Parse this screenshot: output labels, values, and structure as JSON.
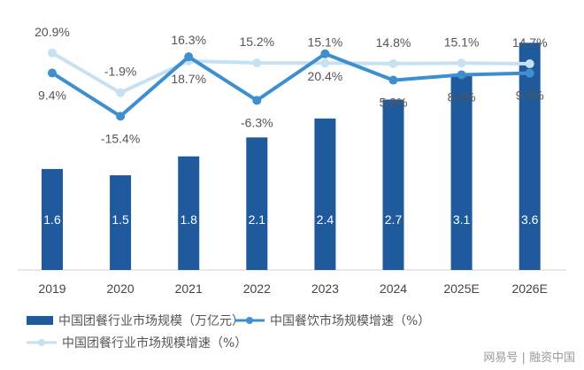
{
  "chart_data": {
    "type": "bar",
    "categories": [
      "2019",
      "2020",
      "2021",
      "2022",
      "2023",
      "2024",
      "2025E",
      "2026E"
    ],
    "series": [
      {
        "name": "中国团餐行业市场规模（万亿元）",
        "type": "bar",
        "values": [
          1.6,
          1.5,
          1.8,
          2.1,
          2.4,
          2.7,
          3.1,
          3.6
        ],
        "color": "#1f5b9c"
      },
      {
        "name": "中国餐饮市场规模增速（%）",
        "type": "line",
        "values": [
          9.4,
          -15.4,
          18.7,
          -6.3,
          20.4,
          5.3,
          8.4,
          9.3
        ],
        "color": "#3d8fd0"
      },
      {
        "name": "中国团餐行业市场规模增速（%）",
        "type": "line",
        "values": [
          20.9,
          -1.9,
          16.3,
          15.2,
          15.1,
          14.8,
          15.1,
          14.7
        ],
        "color": "#c6e1f2"
      }
    ],
    "grid": false,
    "legend": "bottom"
  },
  "watermark": "网易号 | 融资中国"
}
